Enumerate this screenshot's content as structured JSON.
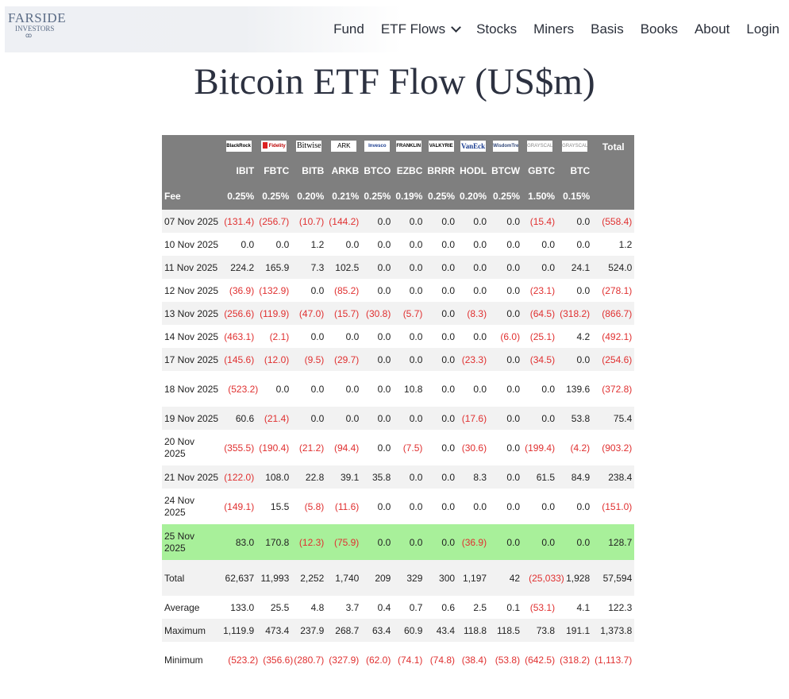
{
  "brand": {
    "line1": "FARSIDE",
    "line2": "INVESTORS",
    "mark": "ꝏ"
  },
  "nav": {
    "fund": "Fund",
    "etf_flows": "ETF Flows",
    "stocks": "Stocks",
    "miners": "Miners",
    "basis": "Basis",
    "books": "Books",
    "about": "About",
    "login": "Login"
  },
  "title": "Bitcoin ETF Flow (US$m)",
  "table": {
    "logos": [
      "BlackRock",
      "Fidelity",
      "Bitwise",
      "ARK",
      "Invesco",
      "FRANKLIN TEMPLETON",
      "VALKYRIE",
      "VanEck",
      "WisdomTree",
      "GRAYSCALE",
      "GRAYSCALE"
    ],
    "total_header": "Total",
    "tickers": [
      "IBIT",
      "FBTC",
      "BITB",
      "ARKB",
      "BTCO",
      "EZBC",
      "BRRR",
      "HODL",
      "BTCW",
      "GBTC",
      "BTC"
    ],
    "fee_label": "Fee",
    "fees": [
      "0.25%",
      "0.25%",
      "0.20%",
      "0.21%",
      "0.25%",
      "0.19%",
      "0.25%",
      "0.20%",
      "0.25%",
      "1.50%",
      "0.15%"
    ],
    "rows": [
      {
        "date": "07 Nov 2025",
        "values": [
          "(131.4)",
          "(256.7)",
          "(10.7)",
          "(144.2)",
          "0.0",
          "0.0",
          "0.0",
          "0.0",
          "0.0",
          "(15.4)",
          "0.0",
          "(558.4)"
        ]
      },
      {
        "date": "10 Nov 2025",
        "values": [
          "0.0",
          "0.0",
          "1.2",
          "0.0",
          "0.0",
          "0.0",
          "0.0",
          "0.0",
          "0.0",
          "0.0",
          "0.0",
          "1.2"
        ]
      },
      {
        "date": "11 Nov 2025",
        "values": [
          "224.2",
          "165.9",
          "7.3",
          "102.5",
          "0.0",
          "0.0",
          "0.0",
          "0.0",
          "0.0",
          "0.0",
          "24.1",
          "524.0"
        ]
      },
      {
        "date": "12 Nov 2025",
        "values": [
          "(36.9)",
          "(132.9)",
          "0.0",
          "(85.2)",
          "0.0",
          "0.0",
          "0.0",
          "0.0",
          "0.0",
          "(23.1)",
          "0.0",
          "(278.1)"
        ]
      },
      {
        "date": "13 Nov 2025",
        "values": [
          "(256.6)",
          "(119.9)",
          "(47.0)",
          "(15.7)",
          "(30.8)",
          "(5.7)",
          "0.0",
          "(8.3)",
          "0.0",
          "(64.5)",
          "(318.2)",
          "(866.7)"
        ]
      },
      {
        "date": "14 Nov 2025",
        "values": [
          "(463.1)",
          "(2.1)",
          "0.0",
          "0.0",
          "0.0",
          "0.0",
          "0.0",
          "0.0",
          "(6.0)",
          "(25.1)",
          "4.2",
          "(492.1)"
        ]
      },
      {
        "date": "17 Nov 2025",
        "values": [
          "(145.6)",
          "(12.0)",
          "(9.5)",
          "(29.7)",
          "0.0",
          "0.0",
          "0.0",
          "(23.3)",
          "0.0",
          "(34.5)",
          "0.0",
          "(254.6)"
        ]
      },
      {
        "date": "18 Nov 2025",
        "values": [
          "(523.2)",
          "0.0",
          "0.0",
          "0.0",
          "0.0",
          "10.8",
          "0.0",
          "0.0",
          "0.0",
          "0.0",
          "139.6",
          "(372.8)"
        ]
      },
      {
        "date": "19 Nov 2025",
        "values": [
          "60.6",
          "(21.4)",
          "0.0",
          "0.0",
          "0.0",
          "0.0",
          "0.0",
          "(17.6)",
          "0.0",
          "0.0",
          "53.8",
          "75.4"
        ]
      },
      {
        "date": "20 Nov 2025",
        "values": [
          "(355.5)",
          "(190.4)",
          "(21.2)",
          "(94.4)",
          "0.0",
          "(7.5)",
          "0.0",
          "(30.6)",
          "0.0",
          "(199.4)",
          "(4.2)",
          "(903.2)"
        ]
      },
      {
        "date": "21 Nov 2025",
        "values": [
          "(122.0)",
          "108.0",
          "22.8",
          "39.1",
          "35.8",
          "0.0",
          "0.0",
          "8.3",
          "0.0",
          "61.5",
          "84.9",
          "238.4"
        ]
      },
      {
        "date": "24 Nov 2025",
        "values": [
          "(149.1)",
          "15.5",
          "(5.8)",
          "(11.6)",
          "0.0",
          "0.0",
          "0.0",
          "0.0",
          "0.0",
          "0.0",
          "0.0",
          "(151.0)"
        ]
      },
      {
        "date": "25 Nov 2025",
        "values": [
          "83.0",
          "170.8",
          "(12.3)",
          "(75.9)",
          "0.0",
          "0.0",
          "0.0",
          "(36.9)",
          "0.0",
          "0.0",
          "0.0",
          "128.7"
        ]
      }
    ],
    "highlight_color": "#a8f09a",
    "summary": [
      {
        "label": "Total",
        "values": [
          "62,637",
          "11,993",
          "2,252",
          "1,740",
          "209",
          "329",
          "300",
          "1,197",
          "42",
          "(25,033)",
          "1,928",
          "57,594"
        ]
      },
      {
        "label": "Average",
        "values": [
          "133.0",
          "25.5",
          "4.8",
          "3.7",
          "0.4",
          "0.7",
          "0.6",
          "2.5",
          "0.1",
          "(53.1)",
          "4.1",
          "122.3"
        ]
      },
      {
        "label": "Maximum",
        "values": [
          "1,119.9",
          "473.4",
          "237.9",
          "268.7",
          "63.4",
          "60.9",
          "43.4",
          "118.8",
          "118.5",
          "73.8",
          "191.1",
          "1,373.8"
        ]
      },
      {
        "label": "Minimum",
        "values": [
          "(523.2)",
          "(356.6)",
          "(280.7)",
          "(327.9)",
          "(62.0)",
          "(74.1)",
          "(74.8)",
          "(38.4)",
          "(53.8)",
          "(642.5)",
          "(318.2)",
          "(1,113.7)"
        ]
      }
    ],
    "negative_color": "#e03030",
    "header_color": "#7f7f7f"
  }
}
